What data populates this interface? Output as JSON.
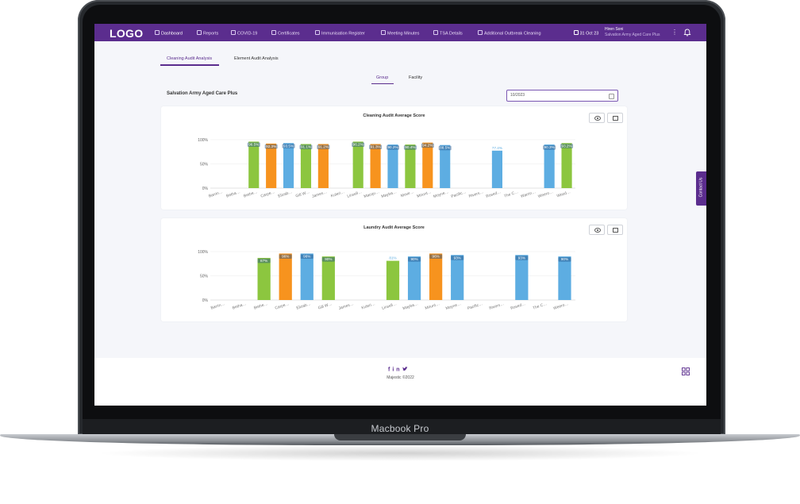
{
  "device": {
    "label": "Macbook Pro"
  },
  "header": {
    "logo": "LOGO",
    "nav": [
      {
        "label": "Dashboard",
        "icon": "dashboard-icon",
        "active": true
      },
      {
        "label": "Reports",
        "icon": "reports-icon"
      },
      {
        "label": "COVID-19",
        "icon": "covid-icon"
      },
      {
        "label": "Certificates",
        "icon": "certificate-icon"
      },
      {
        "label": "Immunisation Register",
        "icon": "register-icon"
      },
      {
        "label": "Meeting Minutes",
        "icon": "minutes-icon"
      },
      {
        "label": "TSA Details",
        "icon": "tsa-icon"
      },
      {
        "label": "Additional Outbreak Cleaning",
        "icon": "cleaning-icon"
      }
    ],
    "date": "31 Oct 23",
    "user_name": "Hiren Soni",
    "user_org": "Salvation Army Aged Care Plus"
  },
  "tabs": {
    "cleaning": "Cleaning Audit Analysis",
    "element": "Element Audit Analysis"
  },
  "segments": {
    "group": "Group",
    "facility": "Facility"
  },
  "facility_title": "Salvation Army Aged Care Plus",
  "month_input": {
    "value": "10/2023"
  },
  "colors": {
    "primary": "#5b2d8e",
    "green": "#8cc63f",
    "orange": "#f7931e",
    "blue": "#5dade2"
  },
  "chart_data": [
    {
      "type": "bar",
      "title": "Cleaning Audit Average Score",
      "categories": [
        "Barrin…",
        "Betha…",
        "Bethe…",
        "Carpe…",
        "Elizab…",
        "Gill W…",
        "James…",
        "Kuleri…",
        "Linsell…",
        "Macqu…",
        "Mayba…",
        "Movir…",
        "Mount…",
        "Moyne…",
        "Pacific…",
        "Rivers…",
        "Rosed…",
        "The C…",
        "Warrin…",
        "Weero…",
        "Wood…"
      ],
      "values": [
        null,
        null,
        96,
        92,
        93,
        91,
        91,
        null,
        96,
        91,
        90,
        90,
        94,
        89,
        null,
        null,
        77.4,
        null,
        null,
        90,
        93
      ],
      "labels": [
        "",
        "",
        "96.5%",
        "92.3%",
        "93.5%",
        "91.1%",
        "91.2%",
        "",
        "96.2%",
        "91.3%",
        "90.2%",
        "90.4%",
        "94.2%",
        "88.5%",
        "",
        "",
        "77.4%",
        "",
        "",
        "90.3%",
        "93.2%"
      ],
      "colors": [
        "",
        "",
        "green",
        "orange",
        "blue",
        "green",
        "orange",
        "",
        "green",
        "orange",
        "blue",
        "green",
        "orange",
        "blue",
        "",
        "",
        "blue",
        "",
        "",
        "blue",
        "green"
      ],
      "y_ticks": [
        "0%",
        "50%",
        "100%"
      ],
      "ylim": [
        0,
        100
      ]
    },
    {
      "type": "bar",
      "title": "Laundry Audit Average Score",
      "categories": [
        "Barrin…",
        "Betha…",
        "Bethe…",
        "Carpe…",
        "Elizab…",
        "Gill W…",
        "James…",
        "Kuleri…",
        "Linsell…",
        "Mayba…",
        "Mount…",
        "Moyne…",
        "Pacific…",
        "Rivers…",
        "Rosed…",
        "The C…",
        "Weero…"
      ],
      "values": [
        null,
        null,
        87,
        96,
        96,
        90,
        null,
        null,
        81,
        90,
        96,
        93,
        null,
        null,
        93,
        null,
        90
      ],
      "labels": [
        "",
        "",
        "87%",
        "96%",
        "96%",
        "90%",
        "",
        "",
        "81%",
        "90%",
        "96%",
        "93%",
        "",
        "",
        "93%",
        "",
        "90%"
      ],
      "colors": [
        "",
        "",
        "green",
        "orange",
        "blue",
        "green",
        "",
        "",
        "green",
        "blue",
        "orange",
        "blue",
        "",
        "",
        "blue",
        "",
        "blue"
      ],
      "y_ticks": [
        "0%",
        "50%",
        "100%"
      ],
      "ylim": [
        0,
        100
      ]
    }
  ],
  "footer": {
    "social": "f in ♥",
    "copyright": "Majestic ©2022"
  },
  "contact": {
    "label": "Contact Us"
  }
}
